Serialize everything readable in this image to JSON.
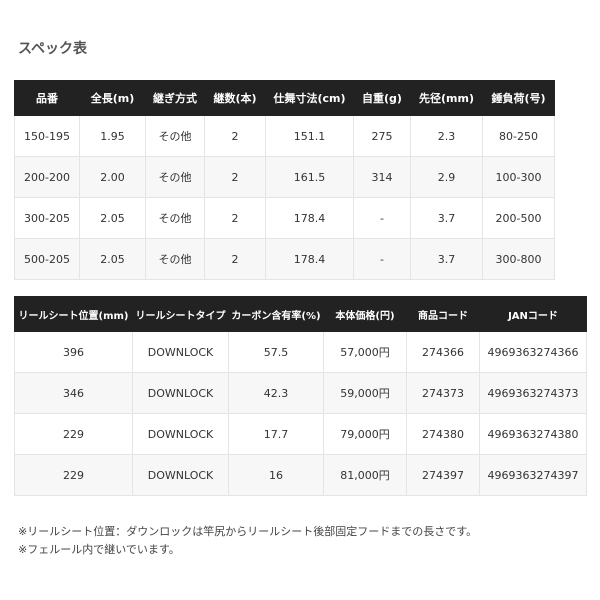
{
  "title": "スペック表",
  "table1": {
    "header": [
      "品番",
      "全長(m)",
      "継ぎ方式",
      "継数(本)",
      "仕舞寸法(cm)",
      "自重(g)",
      "先径(mm)",
      "錘負荷(号)"
    ],
    "rows": [
      [
        "150-195",
        "1.95",
        "その他",
        "2",
        "151.1",
        "275",
        "2.3",
        "80-250"
      ],
      [
        "200-200",
        "2.00",
        "その他",
        "2",
        "161.5",
        "314",
        "2.9",
        "100-300"
      ],
      [
        "300-205",
        "2.05",
        "その他",
        "2",
        "178.4",
        "-",
        "3.7",
        "200-500"
      ],
      [
        "500-205",
        "2.05",
        "その他",
        "2",
        "178.4",
        "-",
        "3.7",
        "300-800"
      ]
    ]
  },
  "table2": {
    "header": [
      "リールシート位置(mm)",
      "リールシートタイプ",
      "カーボン含有率(%)",
      "本体価格(円)",
      "商品コード",
      "JANコード"
    ],
    "rows": [
      [
        "396",
        "DOWNLOCK",
        "57.5",
        "57,000円",
        "274366",
        "4969363274366"
      ],
      [
        "346",
        "DOWNLOCK",
        "42.3",
        "59,000円",
        "274373",
        "4969363274373"
      ],
      [
        "229",
        "DOWNLOCK",
        "17.7",
        "79,000円",
        "274380",
        "4969363274380"
      ],
      [
        "229",
        "DOWNLOCK",
        "16",
        "81,000円",
        "274397",
        "4969363274397"
      ]
    ]
  },
  "notes": [
    "※リールシート位置：ダウンロックは竿尻からリールシート後部固定フードまでの長さです。",
    "※フェルール内で継いでいます。"
  ]
}
